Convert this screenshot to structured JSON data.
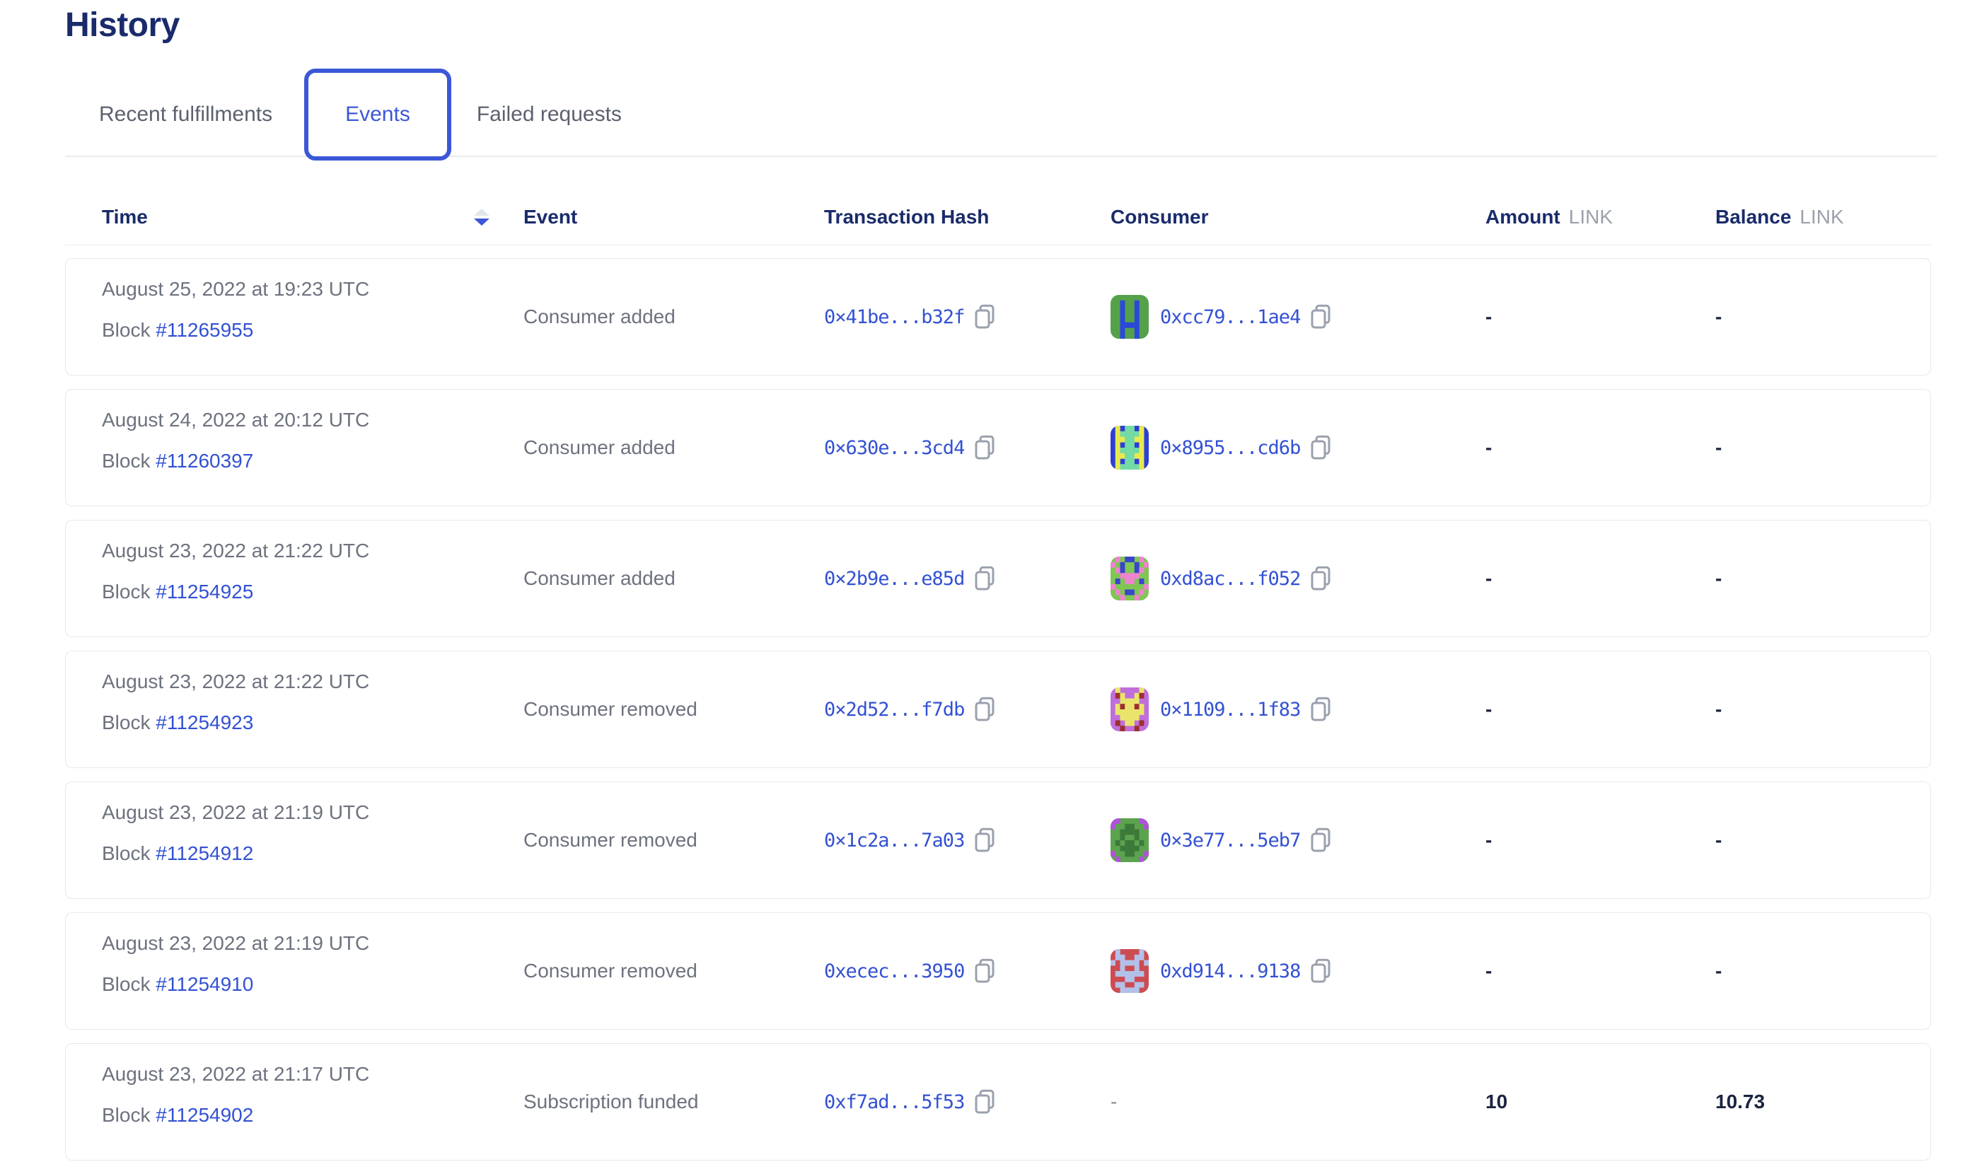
{
  "page": {
    "title": "History"
  },
  "tabs": [
    {
      "label": "Recent fulfillments",
      "active": false
    },
    {
      "label": "Events",
      "active": true
    },
    {
      "label": "Failed requests",
      "active": false
    }
  ],
  "sort": {
    "column": "Time",
    "direction": "desc"
  },
  "table": {
    "headers": {
      "time": "Time",
      "event": "Event",
      "tx": "Transaction Hash",
      "consumer": "Consumer",
      "amount": "Amount",
      "balance": "Balance",
      "unit": "LINK"
    },
    "rows": [
      {
        "date": "August 25, 2022 at 19:23 UTC",
        "block_label": "Block",
        "block": "#11265955",
        "event": "Consumer added",
        "tx": "0×41be...b32f",
        "consumer": "0xcc79...1ae4",
        "amount": "-",
        "balance": "-",
        "avatar": {
          "bg": "#55a14b",
          "fg": "#2b49d8",
          "spot": "#2b49d8",
          "grid": [
            "........",
            "..f..f..",
            "..f..f..",
            "..f..f..",
            "..f..f..",
            "..ffff..",
            "..f..f..",
            "..f..f.."
          ]
        }
      },
      {
        "date": "August 24, 2022 at 20:12 UTC",
        "block_label": "Block",
        "block": "#11260397",
        "event": "Consumer added",
        "tx": "0×630e...3cd4",
        "consumer": "0×8955...cd6b",
        "amount": "-",
        "balance": "-",
        "avatar": {
          "bg": "#2d3fd4",
          "fg": "#e9e94f",
          "spot": "#74dba4",
          "grid": [
            ".f.ss.f.",
            ".fssssf.",
            ".ffssff.",
            ".f.ss.f.",
            ".fssssf.",
            ".ffssff.",
            ".f.ss.f.",
            ".fssssf."
          ]
        }
      },
      {
        "date": "August 23, 2022 at 21:22 UTC",
        "block_label": "Block",
        "block": "#11254925",
        "event": "Consumer added",
        "tx": "0×2b9e...e85d",
        "consumer": "0xd8ac...f052",
        "amount": "-",
        "balance": "-",
        "avatar": {
          "bg": "#7fc653",
          "fg": "#ef83cd",
          "spot": "#3946c8",
          "grid": [
            ".f.ss.f.",
            "f.s..s.f",
            ".fs..sf.",
            "..ffff..",
            ".s.ff.s.",
            "f......f",
            ".f.ss.f.",
            "..f..f.."
          ]
        }
      },
      {
        "date": "August 23, 2022 at 21:22 UTC",
        "block_label": "Block",
        "block": "#11254923",
        "event": "Consumer removed",
        "tx": "0×2d52...f7db",
        "consumer": "0×1109...1f83",
        "amount": "-",
        "balance": "-",
        "avatar": {
          "bg": "#c06edb",
          "fg": "#e9e56b",
          "spot": "#9c2f2f",
          "grid": [
            ".f....f.",
            ".sf..fs.",
            "..ffff..",
            ".fsffsf.",
            ".ffffff.",
            "..ffff..",
            ".s.ff.s.",
            "..s..s.."
          ]
        }
      },
      {
        "date": "August 23, 2022 at 21:19 UTC",
        "block_label": "Block",
        "block": "#11254912",
        "event": "Consumer removed",
        "tx": "0×1c2a...7a03",
        "consumer": "0×3e77...5eb7",
        "amount": "-",
        "balance": "-",
        "avatar": {
          "bg": "#5ca34f",
          "fg": "#b052d8",
          "spot": "#3d7a3a",
          "grid": [
            "ff....ff",
            "f..ss..f",
            "..ssss..",
            "..s..s..",
            ".s.ss.s.",
            "..ssss..",
            "f..ss..f",
            ".f....f."
          ]
        }
      },
      {
        "date": "August 23, 2022 at 21:19 UTC",
        "block_label": "Block",
        "block": "#11254910",
        "event": "Consumer removed",
        "tx": "0xecec...3950",
        "consumer": "0xd914...9138",
        "amount": "-",
        "balance": "-",
        "avatar": {
          "bg": "#cc4c52",
          "fg": "#b3c0e8",
          "spot": "#b3c0e8",
          "grid": [
            ".f....f.",
            ".ff..ff.",
            "f.ffff.f",
            "..f..f..",
            ".ffffff.",
            "...ff...",
            ".ff..ff.",
            "..ffff.."
          ]
        }
      },
      {
        "date": "August 23, 2022 at 21:17 UTC",
        "block_label": "Block",
        "block": "#11254902",
        "event": "Subscription funded",
        "tx": "0xf7ad...5f53",
        "consumer": "-",
        "amount": "10",
        "balance": "10.73",
        "avatar": null
      }
    ]
  },
  "icons": {
    "sort": "sort-descending",
    "copy": "copy"
  },
  "colors": {
    "title": "#1a2b6b",
    "tab_active": "#3b57d7",
    "tab_inactive": "#5b616e",
    "link": "#3351d3",
    "text_gray": "#6d727e",
    "value_dark": "#1b2440",
    "divider": "#e9ebee",
    "card_border": "#e7e9ee"
  }
}
